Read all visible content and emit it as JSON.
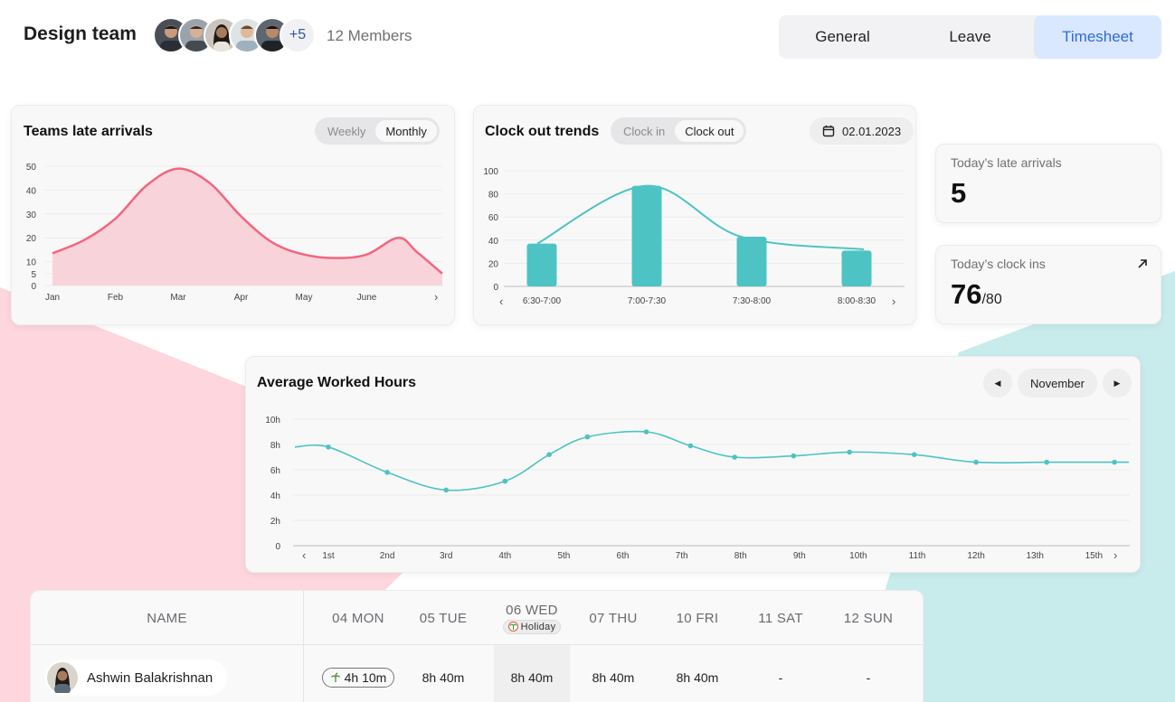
{
  "header": {
    "team_title": "Design team",
    "extra_members": "+5",
    "members_label": "12 Members",
    "tabs": [
      {
        "label": "General",
        "active": false
      },
      {
        "label": "Leave",
        "active": false
      },
      {
        "label": "Timesheet",
        "active": true
      }
    ]
  },
  "colors": {
    "pink_line": "#f2667f",
    "pink_fill": "#f9d3da",
    "teal": "#4ec3c3",
    "active_tab_bg": "#d9e8ff",
    "active_tab_text": "#2f6bd8"
  },
  "late_arrivals": {
    "title": "Teams late arrivals",
    "toggle": [
      "Weekly",
      "Monthly"
    ],
    "active_toggle": "Monthly"
  },
  "clock_out": {
    "title": "Clock out trends",
    "toggle": [
      "Clock in",
      "Clock out"
    ],
    "active_toggle": "Clock out",
    "date": "02.01.2023"
  },
  "stats": {
    "late_label": "Today’s late arrivals",
    "late_value": "5",
    "clockins_label": "Today’s clock ins",
    "clockins_value": "76",
    "clockins_total": "/80"
  },
  "avg_hours": {
    "title": "Average Worked Hours",
    "month": "November"
  },
  "chart_data": [
    {
      "type": "area",
      "title": "Teams late arrivals",
      "categories": [
        "Jan",
        "Feb",
        "Mar",
        "Apr",
        "May",
        "June"
      ],
      "y_ticks": [
        "0",
        "5",
        "10",
        "20",
        "30",
        "40",
        "50"
      ],
      "ylim": [
        0,
        50
      ],
      "grid": true,
      "points": [
        {
          "x": 0.0,
          "y": 13.5
        },
        {
          "x": 0.5,
          "y": 19
        },
        {
          "x": 1.0,
          "y": 28
        },
        {
          "x": 1.5,
          "y": 42
        },
        {
          "x": 2.0,
          "y": 49
        },
        {
          "x": 2.5,
          "y": 43
        },
        {
          "x": 3.0,
          "y": 29
        },
        {
          "x": 3.5,
          "y": 18
        },
        {
          "x": 4.0,
          "y": 13
        },
        {
          "x": 4.5,
          "y": 11.5
        },
        {
          "x": 5.0,
          "y": 13
        },
        {
          "x": 5.5,
          "y": 20
        },
        {
          "x": 5.8,
          "y": 14
        },
        {
          "x": 6.2,
          "y": 5
        }
      ]
    },
    {
      "type": "bar",
      "title": "Clock out trends",
      "categories": [
        "6:30-7:00",
        "7:00-7:30",
        "7:30-8:00",
        "8:00-8:30"
      ],
      "values": [
        37,
        87,
        43,
        31
      ],
      "y_ticks": [
        "0",
        "20",
        "40",
        "60",
        "80",
        "100"
      ],
      "ylim": [
        0,
        100
      ],
      "grid": true,
      "trend_line": true
    },
    {
      "type": "line",
      "title": "Average Worked Hours",
      "x_ticks": [
        "1st",
        "2nd",
        "3rd",
        "4th",
        "5th",
        "6th",
        "7th",
        "8th",
        "9th",
        "10th",
        "11th",
        "12th",
        "13th",
        "15th"
      ],
      "y_ticks": [
        "0",
        "2h",
        "4h",
        "6h",
        "8h",
        "10h"
      ],
      "ylim": [
        0,
        10
      ],
      "grid": true,
      "points": [
        {
          "x": 0,
          "y": 7.8
        },
        {
          "x": 1,
          "y": 5.8
        },
        {
          "x": 2,
          "y": 4.4
        },
        {
          "x": 3,
          "y": 5.1
        },
        {
          "x": 3.75,
          "y": 7.2
        },
        {
          "x": 4.4,
          "y": 8.6
        },
        {
          "x": 5.4,
          "y": 9.0
        },
        {
          "x": 6.15,
          "y": 7.9
        },
        {
          "x": 6.9,
          "y": 7.0
        },
        {
          "x": 7.9,
          "y": 7.1
        },
        {
          "x": 8.85,
          "y": 7.4
        },
        {
          "x": 9.95,
          "y": 7.2
        },
        {
          "x": 11.0,
          "y": 6.6
        },
        {
          "x": 12.2,
          "y": 6.6
        },
        {
          "x": 13.35,
          "y": 6.6
        }
      ]
    }
  ],
  "table": {
    "name_header": "NAME",
    "days": [
      {
        "label": "04 MON"
      },
      {
        "label": "05 TUE"
      },
      {
        "label": "06 WED",
        "badge": "Holiday"
      },
      {
        "label": "07 THU"
      },
      {
        "label": "10 FRI"
      },
      {
        "label": "11 SAT"
      },
      {
        "label": "12 SUN"
      }
    ],
    "rows": [
      {
        "name": "Ashwin Balakrishnan",
        "cells": [
          "4h 10m",
          "8h 40m",
          "8h 40m",
          "8h 40m",
          "8h 40m",
          "-",
          "-"
        ]
      }
    ]
  }
}
